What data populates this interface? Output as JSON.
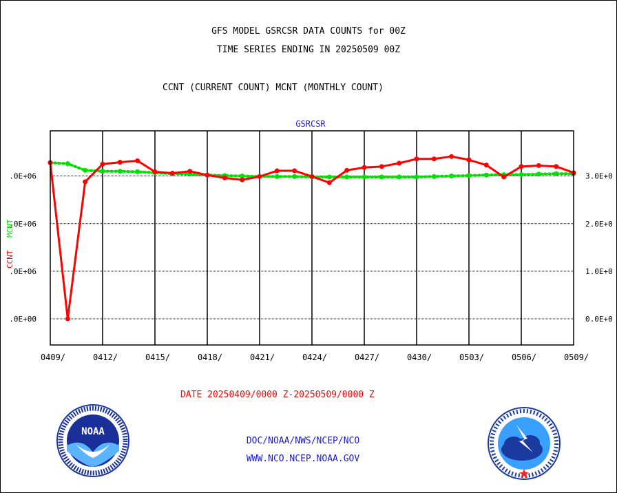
{
  "header": {
    "title1": "GFS MODEL GSRCSR DATA COUNTS for 00Z",
    "title2": "TIME SERIES ENDING IN 20250509 00Z",
    "title3": "CCNT (CURRENT COUNT) MCNT (MONTHLY COUNT)"
  },
  "plot_label": "GSRCSR",
  "date_range": "DATE 20250409/0000 Z-20250509/0000 Z",
  "footer": {
    "line1": "DOC/NOAA/NWS/NCEP/NCO",
    "line2": "WWW.NCO.NCEP.NOAA.GOV"
  },
  "colors": {
    "ccnt": "#ff0000",
    "mcnt": "#00e000",
    "label_blue": "#1a1aff"
  },
  "logos": {
    "left": {
      "icon": "noaa-logo",
      "text": "NOAA"
    },
    "right": {
      "icon": "nws-logo"
    }
  },
  "chart_data": {
    "type": "line",
    "x": [
      "0409",
      "0410",
      "0411",
      "0412",
      "0413",
      "0414",
      "0415",
      "0416",
      "0417",
      "0418",
      "0419",
      "0420",
      "0421",
      "0422",
      "0423",
      "0424",
      "0425",
      "0426",
      "0427",
      "0428",
      "0429",
      "0430",
      "0501",
      "0502",
      "0503",
      "0504",
      "0505",
      "0506",
      "0507",
      "0508",
      "0509"
    ],
    "x_tick_labels": [
      "0409/",
      "0412/",
      "0415/",
      "0418/",
      "0421/",
      "0424/",
      "0427/",
      "0430/",
      "0503/",
      "0506/",
      "0509/"
    ],
    "y_left_tick_labels": [
      ".0E+06",
      ".0E+06",
      ".0E+06",
      ".0E+00"
    ],
    "y_right_tick_labels": [
      "3.0E+0",
      "2.0E+0",
      "1.0E+0",
      "0.0E+0"
    ],
    "ylim": [
      -0.55,
      3.95
    ],
    "ylabel_left": [
      "CCNT",
      "MCNT"
    ],
    "grid": true,
    "series": [
      {
        "name": "CCNT",
        "values": [
          3.28,
          0.0,
          2.88,
          3.25,
          3.29,
          3.32,
          3.09,
          3.06,
          3.1,
          3.02,
          2.96,
          2.92,
          2.99,
          3.11,
          3.11,
          2.99,
          2.86,
          3.12,
          3.18,
          3.2,
          3.27,
          3.36,
          3.36,
          3.41,
          3.34,
          3.23,
          2.98,
          3.2,
          3.22,
          3.2,
          3.07
        ]
      },
      {
        "name": "MCNT",
        "values": [
          3.28,
          3.26,
          3.12,
          3.1,
          3.1,
          3.09,
          3.07,
          3.05,
          3.04,
          3.02,
          3.01,
          3.0,
          2.99,
          2.99,
          2.99,
          2.98,
          2.98,
          2.98,
          2.98,
          2.98,
          2.98,
          2.98,
          2.99,
          3.0,
          3.01,
          3.02,
          3.03,
          3.03,
          3.04,
          3.05,
          3.05
        ]
      }
    ]
  }
}
